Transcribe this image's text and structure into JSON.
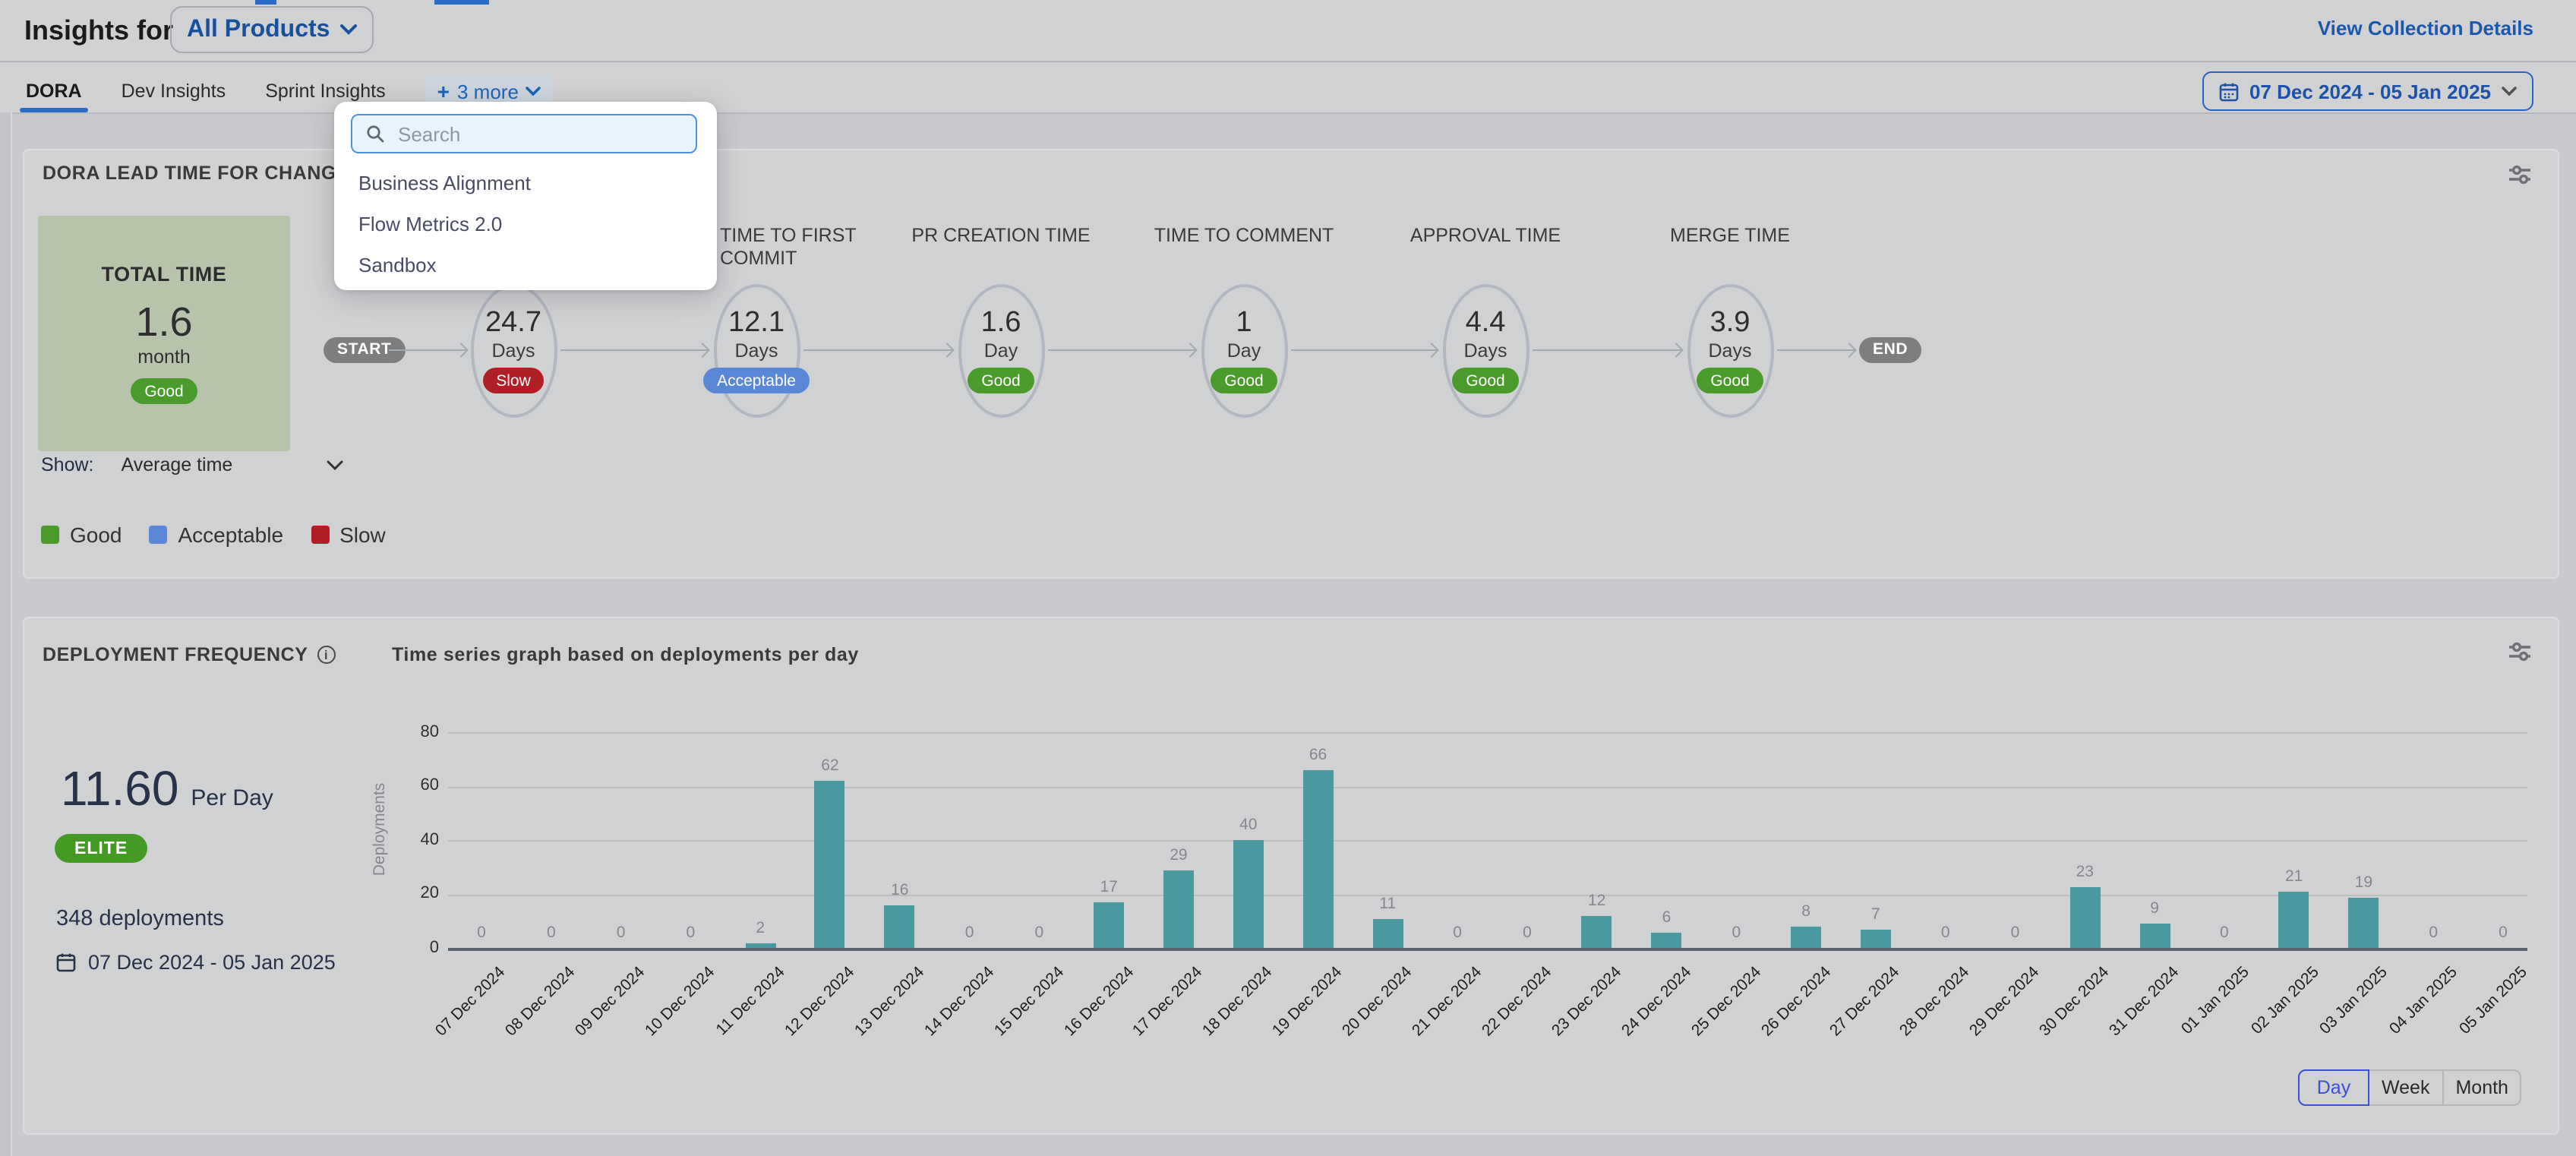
{
  "colors": {
    "good": "#4a9b2b",
    "acceptable": "#5b87d7",
    "slow": "#b11f26",
    "bar": "#4a99a2",
    "accent_blue": "#1b57ad"
  },
  "header": {
    "title": "Insights for",
    "collection_selector": "All Products",
    "view_collection_details": "View Collection Details",
    "date_range": "07 Dec 2024 - 05 Jan 2025"
  },
  "tabs": {
    "items": [
      {
        "label": "DORA",
        "active": true
      },
      {
        "label": "Dev Insights",
        "active": false
      },
      {
        "label": "Sprint Insights",
        "active": false
      }
    ],
    "more_label": "3 more"
  },
  "insights_dropdown": {
    "search_placeholder": "Search",
    "items": [
      "Business Alignment",
      "Flow Metrics 2.0",
      "Sandbox"
    ]
  },
  "lead_time_card": {
    "title": "DORA LEAD TIME FOR CHANGES REPORT",
    "total": {
      "label": "TOTAL TIME",
      "value": "1.6",
      "unit": "month",
      "rating": "Good"
    },
    "start_label": "START",
    "end_label": "END",
    "stages": [
      {
        "label": "",
        "value": "24.7",
        "unit": "Days",
        "rating": "Slow"
      },
      {
        "label": "TIME TO FIRST COMMIT",
        "value": "12.1",
        "unit": "Days",
        "rating": "Acceptable",
        "wrap": true
      },
      {
        "label": "PR CREATION TIME",
        "value": "1.6",
        "unit": "Day",
        "rating": "Good"
      },
      {
        "label": "TIME TO COMMENT",
        "value": "1",
        "unit": "Day",
        "rating": "Good"
      },
      {
        "label": "APPROVAL TIME",
        "value": "4.4",
        "unit": "Days",
        "rating": "Good"
      },
      {
        "label": "MERGE TIME",
        "value": "3.9",
        "unit": "Days",
        "rating": "Good"
      }
    ],
    "show_label": "Show:",
    "show_value": "Average time",
    "legend": [
      {
        "label": "Good",
        "color": "#4a9b2b"
      },
      {
        "label": "Acceptable",
        "color": "#5b87d7"
      },
      {
        "label": "Slow",
        "color": "#b11f26"
      }
    ]
  },
  "deployment_card": {
    "title": "DEPLOYMENT FREQUENCY",
    "subtitle": "Time series graph based on deployments per day",
    "rate_value": "11.60",
    "rate_unit": "Per Day",
    "rating_badge": "ELITE",
    "total_label": "348 deployments",
    "date_range": "07 Dec 2024 - 05 Jan 2025",
    "granularity": [
      "Day",
      "Week",
      "Month"
    ],
    "granularity_selected": "Day"
  },
  "chart_data": {
    "type": "bar",
    "title": "Time series graph based on deployments per day",
    "xlabel": "",
    "ylabel": "Deployments",
    "ylim": [
      0,
      80
    ],
    "yticks": [
      0,
      20,
      40,
      60,
      80
    ],
    "grid": true,
    "legend_position": "none",
    "bar_color": "#4a99a2",
    "categories": [
      "07 Dec 2024",
      "08 Dec 2024",
      "09 Dec 2024",
      "10 Dec 2024",
      "11 Dec 2024",
      "12 Dec 2024",
      "13 Dec 2024",
      "14 Dec 2024",
      "15 Dec 2024",
      "16 Dec 2024",
      "17 Dec 2024",
      "18 Dec 2024",
      "19 Dec 2024",
      "20 Dec 2024",
      "21 Dec 2024",
      "22 Dec 2024",
      "23 Dec 2024",
      "24 Dec 2024",
      "25 Dec 2024",
      "26 Dec 2024",
      "27 Dec 2024",
      "28 Dec 2024",
      "29 Dec 2024",
      "30 Dec 2024",
      "31 Dec 2024",
      "01 Jan 2025",
      "02 Jan 2025",
      "03 Jan 2025",
      "04 Jan 2025",
      "05 Jan 2025"
    ],
    "values": [
      0,
      0,
      0,
      0,
      2,
      62,
      16,
      0,
      0,
      17,
      29,
      40,
      66,
      11,
      0,
      0,
      12,
      6,
      0,
      8,
      7,
      0,
      0,
      23,
      9,
      0,
      21,
      19,
      0,
      0
    ]
  }
}
